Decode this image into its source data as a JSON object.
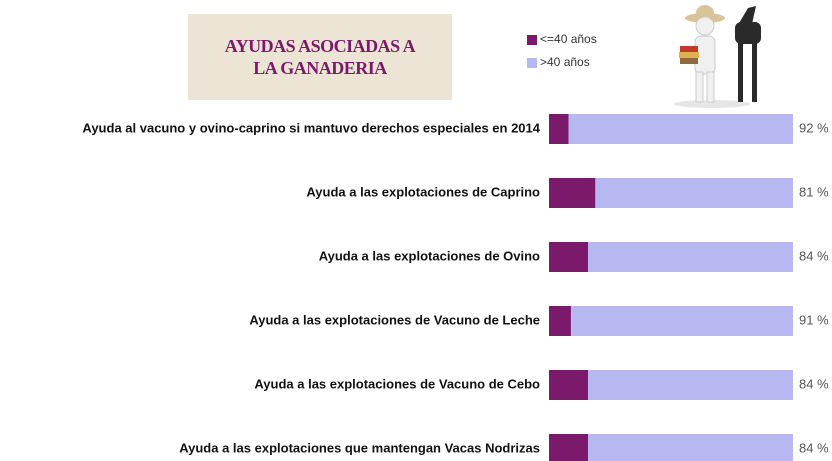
{
  "chart_data": {
    "type": "stacked-bar-horizontal",
    "title": "AYUDAS ASOCIADAS A LA GANADERIA",
    "categories": [
      "Ayuda al vacuno y ovino-caprino si mantuvo derechos especiales en 2014",
      "Ayuda a las explotaciones de Caprino",
      "Ayuda a las explotaciones de Ovino",
      "Ayuda a las explotaciones de Vacuno de Leche",
      "Ayuda a las explotaciones de Vacuno de Cebo",
      "Ayuda a las explotaciones que mantengan Vacas Nodrizas"
    ],
    "series": [
      {
        "name": "<=40 años",
        "color": "#7b1a6a",
        "values": [
          8,
          19,
          16,
          9,
          16,
          16
        ],
        "value_labels": [
          "8%",
          "19%",
          "16%",
          "9%",
          "16%",
          "16%"
        ]
      },
      {
        "name": ">40 años",
        "color": "#b7b7f2",
        "values": [
          92,
          81,
          84,
          91,
          84,
          84
        ],
        "value_labels": [
          "92 %",
          "81 %",
          "84 %",
          "91 %",
          "84 %",
          "84 %"
        ]
      }
    ],
    "xlim": [
      0,
      100
    ]
  }
}
